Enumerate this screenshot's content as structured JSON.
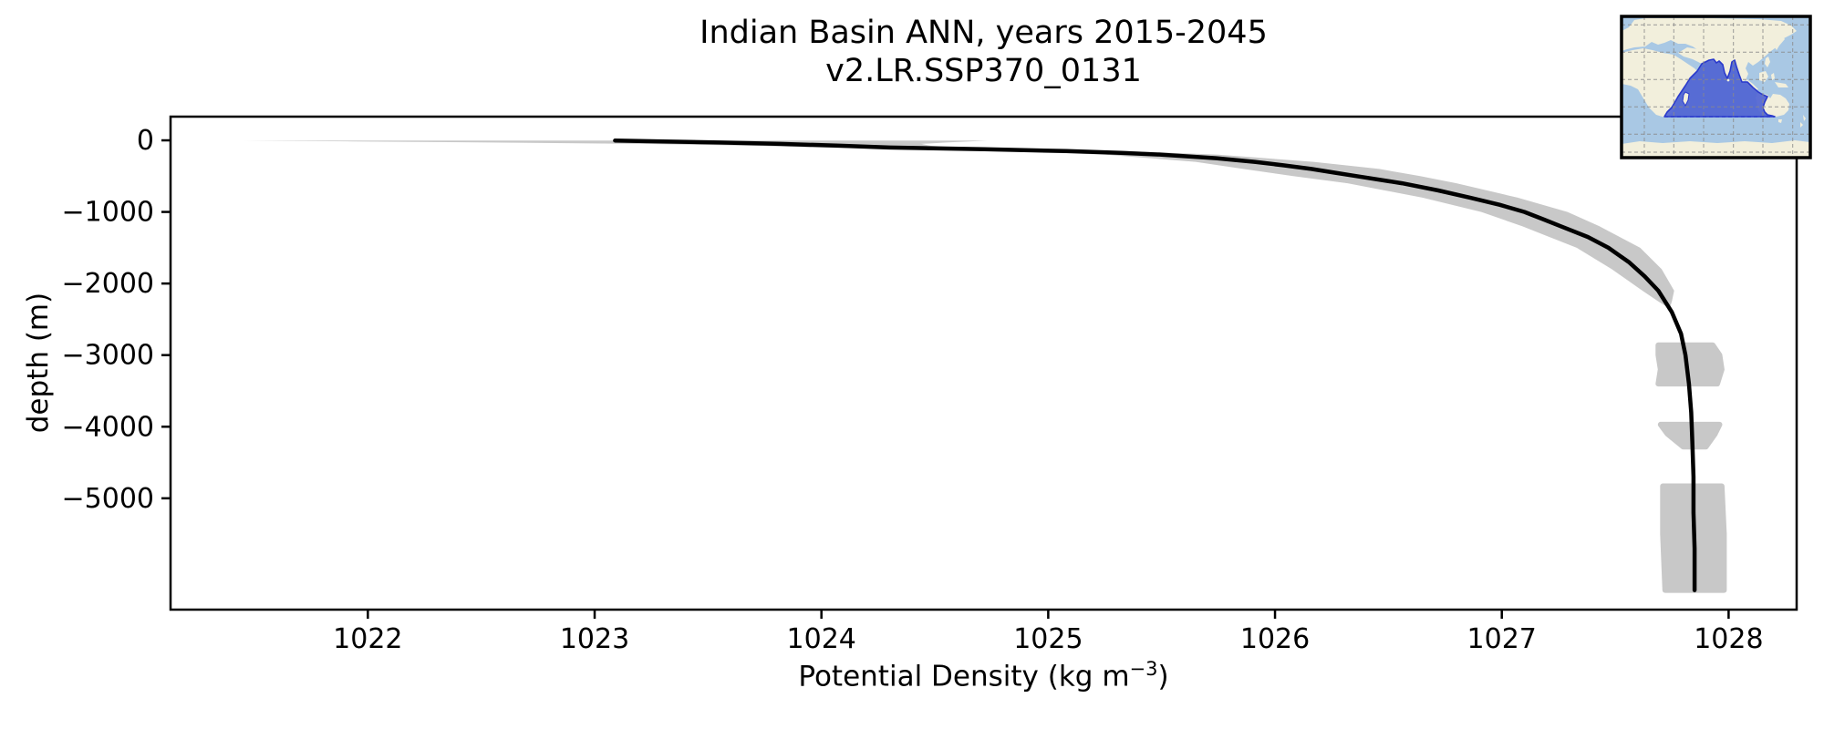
{
  "figure": {
    "title": "Indian Basin ANN, years 2015-2045",
    "subtitle": "v2.LR.SSP370_0131",
    "xlabel_parts": {
      "main": "Potential Density (kg m",
      "sup": "−3",
      "end": ")"
    },
    "ylabel": "depth (m)"
  },
  "chart_data": {
    "type": "line",
    "title": "Indian Basin ANN, years 2015-2045",
    "subtitle": "v2.LR.SSP370_0131",
    "xlabel": "Potential Density (kg m⁻³)",
    "ylabel": "depth (m)",
    "xlim": [
      1021.13,
      1028.3
    ],
    "ylim": [
      -6555,
      331
    ],
    "grid": false,
    "xticks": [
      1022,
      1023,
      1024,
      1025,
      1026,
      1027,
      1028
    ],
    "xtick_labels": [
      "1022",
      "1023",
      "1024",
      "1025",
      "1026",
      "1027",
      "1028"
    ],
    "yticks": [
      0,
      -1000,
      -2000,
      -3000,
      -4000,
      -5000
    ],
    "ytick_labels": [
      "0",
      "−1000",
      "−2000",
      "−3000",
      "−4000",
      "−5000"
    ],
    "line_color": "#000000",
    "band_color": "#c8c8c8",
    "series": [
      {
        "name": "ensemble-mean potential density profile",
        "points": [
          [
            -3,
            1023.09
          ],
          [
            -15,
            1023.3
          ],
          [
            -30,
            1023.55
          ],
          [
            -50,
            1023.82
          ],
          [
            -75,
            1024.08
          ],
          [
            -100,
            1024.3
          ],
          [
            -125,
            1024.72
          ],
          [
            -150,
            1025.08
          ],
          [
            -175,
            1025.32
          ],
          [
            -200,
            1025.5
          ],
          [
            -250,
            1025.74
          ],
          [
            -300,
            1025.91
          ],
          [
            -350,
            1026.04
          ],
          [
            -400,
            1026.16
          ],
          [
            -450,
            1026.26
          ],
          [
            -500,
            1026.36
          ],
          [
            -600,
            1026.56
          ],
          [
            -700,
            1026.72
          ],
          [
            -800,
            1026.86
          ],
          [
            -900,
            1026.99
          ],
          [
            -1000,
            1027.1
          ],
          [
            -1100,
            1027.18
          ],
          [
            -1200,
            1027.26
          ],
          [
            -1350,
            1027.38
          ],
          [
            -1500,
            1027.47
          ],
          [
            -1700,
            1027.56
          ],
          [
            -1900,
            1027.63
          ],
          [
            -2100,
            1027.69
          ],
          [
            -2400,
            1027.75
          ],
          [
            -2700,
            1027.79
          ],
          [
            -3000,
            1027.81
          ],
          [
            -3400,
            1027.825
          ],
          [
            -3800,
            1027.835
          ],
          [
            -4200,
            1027.84
          ],
          [
            -4700,
            1027.845
          ],
          [
            -5200,
            1027.845
          ],
          [
            -5700,
            1027.85
          ],
          [
            -6283,
            1027.85
          ]
        ]
      }
    ],
    "uncertainty_band": {
      "sigma_by_depth": [
        [
          -3,
          1.64
        ],
        [
          -15,
          1.35
        ],
        [
          -30,
          1.0
        ],
        [
          -50,
          0.62
        ],
        [
          -75,
          0.4
        ],
        [
          -100,
          0.3
        ],
        [
          -150,
          0.26
        ],
        [
          -200,
          0.25
        ],
        [
          -300,
          0.26
        ],
        [
          -400,
          0.3
        ],
        [
          -500,
          0.28
        ],
        [
          -600,
          0.24
        ],
        [
          -800,
          0.21
        ],
        [
          -1000,
          0.19
        ],
        [
          -1200,
          0.17
        ],
        [
          -1500,
          0.14
        ],
        [
          -1800,
          0.11
        ],
        [
          -2100,
          0.07
        ],
        [
          -2250,
          0.03
        ],
        [
          -2350,
          0.0
        ]
      ]
    },
    "band_patches": [
      [
        [
          -2860,
          1027.69,
          1027.93
        ],
        [
          -3000,
          1027.69,
          1027.96
        ],
        [
          -3200,
          1027.7,
          1027.97
        ],
        [
          -3400,
          1027.69,
          1027.95
        ]
      ],
      [
        [
          -3970,
          1027.7,
          1027.96
        ],
        [
          -4100,
          1027.73,
          1027.94
        ],
        [
          -4280,
          1027.8,
          1027.9
        ]
      ],
      [
        [
          -4830,
          1027.71,
          1027.97
        ],
        [
          -5500,
          1027.71,
          1027.98
        ],
        [
          -6283,
          1027.72,
          1027.98
        ]
      ]
    ],
    "inset_map": {
      "description": "world map with Indian Ocean basin highlighted",
      "colors": {
        "ocean": "#a9c8e4",
        "land": "#f2efdc",
        "basin_fill": "#5064d2",
        "basin_edge": "#2a3acc",
        "grid": "#8a8a8a",
        "border": "#000000"
      }
    }
  }
}
